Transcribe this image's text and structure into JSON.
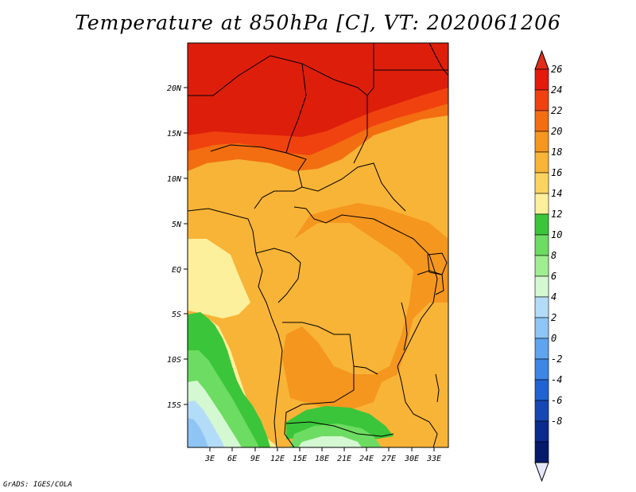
{
  "title": "Temperature at 850hPa [C], VT: 2020061206",
  "credit": "GrADS: IGES/COLA",
  "lat_labels": [
    "20N",
    "15N",
    "10N",
    "5N",
    "EQ",
    "5S",
    "10S",
    "15S"
  ],
  "lon_labels": [
    "3E",
    "6E",
    "9E",
    "12E",
    "15E",
    "18E",
    "21E",
    "24E",
    "27E",
    "30E",
    "33E"
  ],
  "colorbar": {
    "labels": [
      "26",
      "24",
      "22",
      "20",
      "18",
      "16",
      "14",
      "12",
      "10",
      "8",
      "6",
      "4",
      "2",
      "0",
      "-2",
      "-4",
      "-6",
      "-8"
    ],
    "colors": [
      "#e41a0b",
      "#f0420e",
      "#f26e11",
      "#f5961f",
      "#f8b437",
      "#fbd460",
      "#fdf09c",
      "#3bc53a",
      "#6ddc62",
      "#a0ee92",
      "#d4f8d2",
      "#b3dcf8",
      "#8fc5f4",
      "#5fa4ee",
      "#3c86e6",
      "#2163d2",
      "#1747b4",
      "#0c2b8d",
      "#061a6b"
    ],
    "over_color": "#e02c1a",
    "under_color": "#e6e6fa"
  },
  "map_colors": {
    "hot": "#dd1e0b",
    "red_orange": "#f0420e",
    "orange": "#f26e11",
    "orange2": "#f5961f",
    "light_orange": "#f8b437",
    "yellow": "#fbd460",
    "pale_yellow": "#fdf09c",
    "green": "#3bc53a",
    "light_green": "#6ddc62",
    "pale_green": "#a0ee92",
    "mint": "#d4f8d2",
    "light_blue": "#b3dcf8",
    "blue": "#8fc5f4"
  }
}
